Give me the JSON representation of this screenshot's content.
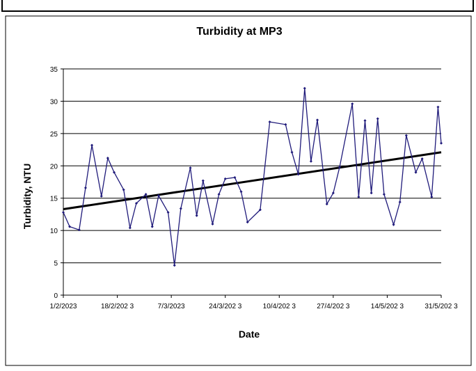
{
  "chart_data": {
    "type": "line",
    "title": "Turbidity at MP3",
    "xlabel": "Date",
    "ylabel": "Turbidity, NTU",
    "ylim": [
      0,
      35
    ],
    "yticks": [
      0,
      5,
      10,
      15,
      20,
      25,
      30,
      35
    ],
    "xlim": [
      "1/2/2023",
      "31/5/2023"
    ],
    "xticks": [
      "1/2/2023",
      "18/2/2023",
      "7/3/2023",
      "24/3/2023",
      "10/4/2023",
      "27/4/2023",
      "14/5/2023",
      "31/5/2023"
    ],
    "x_tick_labels": [
      "1/2/2023",
      "18/2/202 3",
      "7/3/2023",
      "24/3/202 3",
      "10/4/202 3",
      "27/4/202 3",
      "14/5/202 3",
      "31/5/202 3"
    ],
    "grid": "horizontal",
    "legend": "none",
    "series": [
      {
        "color": "#1f1a7a",
        "marker": "diamond",
        "points": [
          [
            "1/2/2023",
            12.8
          ],
          [
            "3/2/2023",
            10.6
          ],
          [
            "6/2/2023",
            10.1
          ],
          [
            "8/2/2023",
            16.6
          ],
          [
            "10/2/2023",
            23.2
          ],
          [
            "13/2/2023",
            15.3
          ],
          [
            "15/2/2023",
            21.2
          ],
          [
            "17/2/2023",
            19.0
          ],
          [
            "20/2/2023",
            16.3
          ],
          [
            "22/2/2023",
            10.4
          ],
          [
            "24/2/2023",
            14.2
          ],
          [
            "27/2/2023",
            15.6
          ],
          [
            "1/3/2023",
            10.6
          ],
          [
            "3/3/2023",
            15.4
          ],
          [
            "6/3/2023",
            12.8
          ],
          [
            "8/3/2023",
            4.6
          ],
          [
            "10/3/2023",
            13.4
          ],
          [
            "13/3/2023",
            19.7
          ],
          [
            "15/3/2023",
            12.3
          ],
          [
            "17/3/2023",
            17.7
          ],
          [
            "20/3/2023",
            11.0
          ],
          [
            "22/3/2023",
            15.6
          ],
          [
            "24/3/2023",
            18.0
          ],
          [
            "27/3/2023",
            18.2
          ],
          [
            "29/3/2023",
            16.0
          ],
          [
            "31/3/2023",
            11.3
          ],
          [
            "4/4/2023",
            13.2
          ],
          [
            "7/4/2023",
            26.8
          ],
          [
            "12/4/2023",
            26.4
          ],
          [
            "14/4/2023",
            22.1
          ],
          [
            "16/4/2023",
            18.7
          ],
          [
            "18/4/2023",
            32.0
          ],
          [
            "20/4/2023",
            20.7
          ],
          [
            "22/4/2023",
            27.1
          ],
          [
            "25/4/2023",
            14.1
          ],
          [
            "27/4/2023",
            15.8
          ],
          [
            "29/4/2023",
            19.8
          ],
          [
            "3/5/2023",
            29.6
          ],
          [
            "5/5/2023",
            15.2
          ],
          [
            "7/5/2023",
            27.0
          ],
          [
            "9/5/2023",
            15.8
          ],
          [
            "11/5/2023",
            27.3
          ],
          [
            "13/5/2023",
            15.6
          ],
          [
            "16/5/2023",
            10.9
          ],
          [
            "18/5/2023",
            14.4
          ],
          [
            "20/5/2023",
            24.7
          ],
          [
            "23/5/2023",
            19.0
          ],
          [
            "25/5/2023",
            21.1
          ],
          [
            "28/5/2023",
            15.2
          ],
          [
            "30/5/2023",
            29.1
          ],
          [
            "31/5/2023",
            23.5
          ]
        ]
      }
    ],
    "trendline": {
      "color": "#000000",
      "start": [
        "1/2/2023",
        13.3
      ],
      "end": [
        "31/5/2023",
        22.1
      ]
    }
  }
}
